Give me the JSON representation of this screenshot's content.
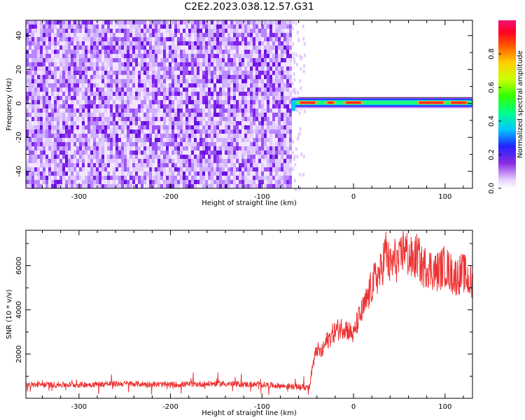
{
  "title": "C2E2.2023.038.12.57.G31",
  "chart_data": [
    {
      "type": "heatmap",
      "xlabel": "Height of straight line (km)",
      "ylabel": "Frequency (Hz)",
      "xlim": [
        -358,
        130
      ],
      "ylim": [
        -50,
        49
      ],
      "xticks": [
        -300,
        -200,
        -100,
        0,
        100
      ],
      "xtick_labels": [
        "-300",
        "-200",
        "-100",
        "0",
        "100"
      ],
      "yticks": [
        -40,
        -20,
        0,
        20,
        40
      ],
      "ytick_labels": [
        "-40",
        "-20",
        "0",
        "20",
        "40"
      ],
      "noise_region_x": [
        -358,
        -68
      ],
      "signal_band": {
        "x_range": [
          -68,
          130
        ],
        "center_frequency_hz": 0.5,
        "peak_segments": [
          [
            -60,
            -40
          ],
          [
            -30,
            -20
          ],
          [
            -10,
            10
          ],
          [
            70,
            100
          ],
          [
            105,
            125
          ]
        ]
      },
      "colorbar": {
        "label": "Normalized spectral amplitude",
        "range": [
          0,
          1
        ],
        "ticks": [
          0.0,
          0.2,
          0.4,
          0.6,
          0.8
        ],
        "tick_labels": [
          "0.0",
          "0.2",
          "0.4",
          "0.6",
          "0.8"
        ]
      }
    },
    {
      "type": "line",
      "xlabel": "Height of straight line (km)",
      "ylabel": "SNR (10 * v/v)",
      "xlim": [
        -358,
        130
      ],
      "ylim": [
        0,
        7600
      ],
      "xticks": [
        -300,
        -200,
        -100,
        0,
        100
      ],
      "xtick_labels": [
        "-300",
        "-200",
        "-100",
        "0",
        "100"
      ],
      "yticks": [
        2000,
        4000,
        6000
      ],
      "ytick_labels": [
        "2000",
        "4000",
        "6000"
      ],
      "series": [
        {
          "color": "#ee3333",
          "x": [
            -358,
            -300,
            -250,
            -200,
            -150,
            -100,
            -60,
            -48,
            -45,
            -40,
            -35,
            -30,
            -20,
            -10,
            0,
            5,
            10,
            15,
            20,
            25,
            30,
            35,
            40,
            45,
            50,
            55,
            60,
            65,
            70,
            75,
            80,
            90,
            100,
            110,
            120,
            130
          ],
          "y": [
            600,
            600,
            650,
            600,
            650,
            600,
            500,
            500,
            1400,
            2200,
            2000,
            2500,
            3000,
            3200,
            2800,
            3500,
            3900,
            4400,
            5000,
            5400,
            5600,
            6600,
            5800,
            6200,
            6000,
            6800,
            6300,
            6100,
            6400,
            5800,
            5900,
            5600,
            5900,
            5400,
            5600,
            5000
          ]
        }
      ]
    }
  ]
}
